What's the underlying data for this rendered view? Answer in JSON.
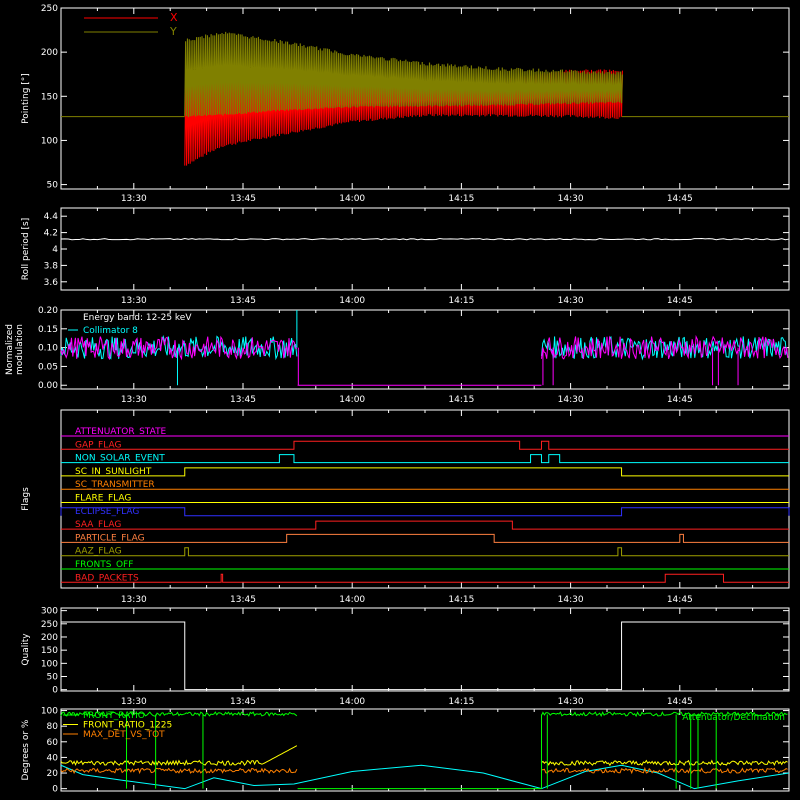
{
  "chart_data": [
    {
      "type": "line",
      "ylabel": "Pointing [°]",
      "ylim": [
        45,
        250
      ],
      "yticks": [
        50,
        100,
        150,
        200,
        250
      ],
      "xlim_minutes": [
        800,
        900
      ],
      "xtick_labels": [
        "13:30",
        "13:45",
        "14:00",
        "14:15",
        "14:30",
        "14:45"
      ],
      "xtick_minutes": [
        810,
        825,
        840,
        855,
        870,
        885
      ],
      "legend": [
        {
          "name": "X",
          "color": "#ff0000"
        },
        {
          "name": "Y",
          "color": "#808000"
        }
      ],
      "baseline": 127,
      "data_start_min": 817,
      "data_end_min": 877,
      "envelope": {
        "t": [
          817,
          822,
          830,
          840,
          850,
          860,
          870,
          877
        ],
        "y_min": [
          126,
          128,
          133,
          137,
          138,
          139,
          141,
          142
        ],
        "y_max": [
          215,
          224,
          214,
          199,
          189,
          183,
          180,
          178
        ],
        "x_min": [
          70,
          92,
          105,
          120,
          127,
          127,
          126,
          124
        ],
        "x_max": [
          170,
          172,
          170,
          168,
          168,
          170,
          181,
          180
        ]
      }
    },
    {
      "type": "line",
      "ylabel": "Roll period [s]",
      "ylim": [
        3.5,
        4.5
      ],
      "yticks": [
        3.6,
        3.8,
        4.0,
        4.2,
        4.4
      ],
      "series": [
        {
          "color": "#ffffff",
          "t": [
            800,
            900
          ],
          "values": [
            4.12,
            4.12
          ]
        }
      ]
    },
    {
      "type": "line",
      "ylabel": "Normalized modulation",
      "ylim": [
        -0.01,
        0.2
      ],
      "yticks": [
        0.0,
        0.05,
        0.1,
        0.15,
        0.2
      ],
      "ytick_labels": [
        "0.00",
        "0.05",
        "0.10",
        "0.15",
        "0.20"
      ],
      "annotation": "Energy band: 12-25 keV",
      "legend": [
        {
          "name": "Collimator 8",
          "color": "#00ffff"
        }
      ],
      "active_intervals": [
        [
          800,
          832.5
        ],
        [
          866,
          900
        ]
      ],
      "mean": 0.1,
      "series_colors": [
        "#00ffff",
        "#ff00ff"
      ]
    },
    {
      "type": "table",
      "ylabel": "Flags",
      "flags": [
        {
          "name": "ATTENUATOR_STATE",
          "color": "#ff00ff",
          "steps": []
        },
        {
          "name": "GAP_FLAG",
          "color": "#ff2020",
          "steps": [
            [
              832,
              863
            ],
            [
              866,
              867
            ]
          ]
        },
        {
          "name": "NON_SOLAR_EVENT",
          "color": "#00ffff",
          "steps": [
            [
              830,
              832
            ],
            [
              864.5,
              866
            ],
            [
              867,
              868.5
            ]
          ]
        },
        {
          "name": "SC_IN_SUNLIGHT",
          "color": "#ffff00",
          "steps": [
            [
              817,
              877
            ]
          ]
        },
        {
          "name": "SC_TRANSMITTER",
          "color": "#ff8000",
          "steps": []
        },
        {
          "name": "FLARE_FLAG",
          "color": "#ffff00",
          "steps": []
        },
        {
          "name": "ECLIPSE_FLAG",
          "color": "#3030ff",
          "steps": [
            [
              800,
              817
            ],
            [
              877,
              900
            ]
          ]
        },
        {
          "name": "SAA_FLAG",
          "color": "#ff2020",
          "steps": [
            [
              835,
              862
            ]
          ]
        },
        {
          "name": "PARTICLE_FLAG",
          "color": "#ff8040",
          "steps": [
            [
              831,
              859.5
            ],
            [
              885,
              885.5
            ]
          ]
        },
        {
          "name": "AAZ_FLAG",
          "color": "#a0a000",
          "steps": [
            [
              817,
              817.5
            ],
            [
              876.5,
              877
            ]
          ]
        },
        {
          "name": "FRONTS_OFF",
          "color": "#00ff00",
          "steps": []
        },
        {
          "name": "BAD_PACKETS",
          "color": "#ff2020",
          "steps": [
            [
              822,
              822.2
            ],
            [
              883,
              891
            ]
          ]
        }
      ]
    },
    {
      "type": "line",
      "ylabel": "Quality",
      "ylim": [
        -5,
        310
      ],
      "yticks": [
        0,
        50,
        100,
        150,
        200,
        250,
        300
      ],
      "series": [
        {
          "color": "#ffffff",
          "t": [
            800,
            817,
            817,
            877,
            877,
            900
          ],
          "values": [
            257,
            257,
            0,
            0,
            257,
            257
          ]
        }
      ]
    },
    {
      "type": "line",
      "ylabel": "Degrees or %",
      "ylim": [
        -3,
        102
      ],
      "yticks": [
        0,
        20,
        40,
        60,
        80,
        100
      ],
      "legend": [
        {
          "name": "FRONT_RATIO",
          "color": "#00ff00"
        },
        {
          "name": "FRONT_RATIO_1225",
          "color": "#ffff00"
        },
        {
          "name": "MAX_DET_VS_TOT",
          "color": "#ff8000"
        }
      ],
      "annotation_right": "Attenuator/Decimation",
      "cyan_curve": {
        "t": [
          800,
          803,
          809,
          817,
          821,
          826.5,
          832,
          840,
          849.5,
          858,
          866,
          872,
          877,
          882,
          887,
          893,
          900
        ],
        "values": [
          30,
          18,
          10,
          0,
          14,
          4,
          6,
          22,
          30,
          20,
          0,
          22,
          30,
          20,
          0,
          10,
          20
        ]
      }
    }
  ]
}
